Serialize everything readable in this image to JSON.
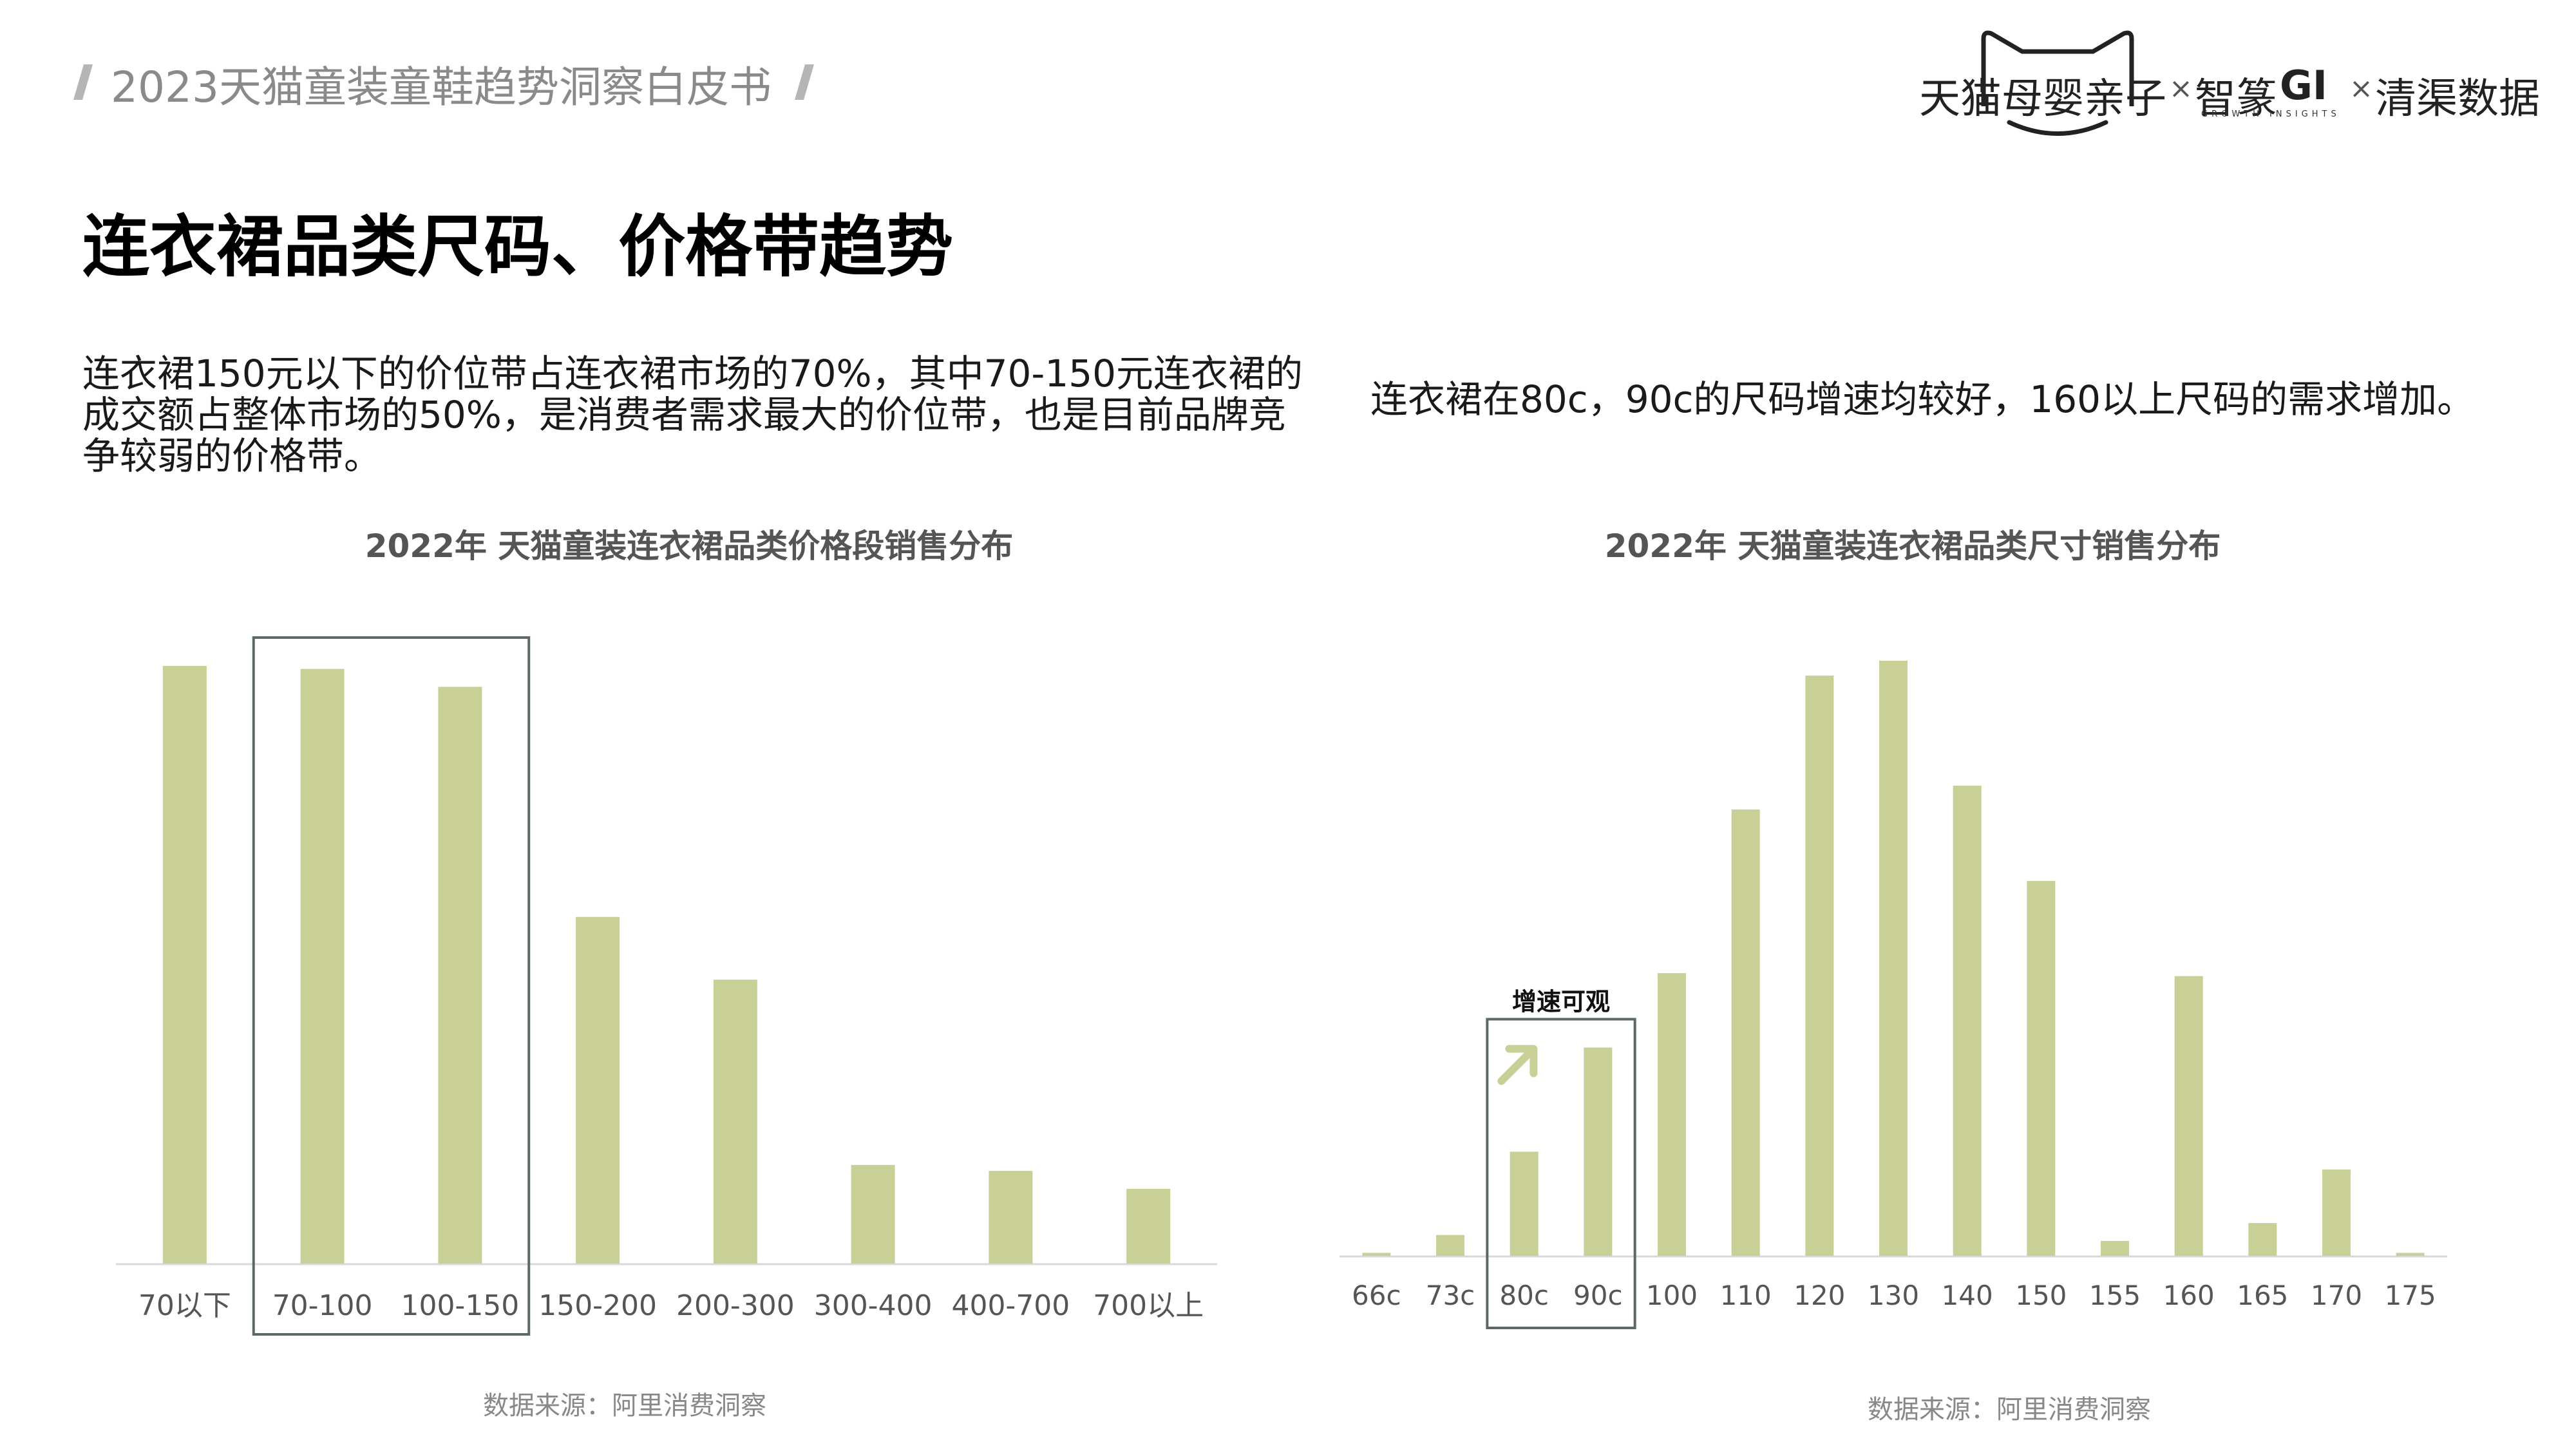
{
  "header": {
    "report_title": "2023天猫童装童鞋趋势洞察白皮书"
  },
  "brand": {
    "tmall": "天猫母婴亲子",
    "times1": "×",
    "zhizhuan": "智篆",
    "gi": "GI",
    "gi_sub": "GROWTH   INSIGHTS",
    "times2": "×",
    "qingqu": "清渠数据"
  },
  "page_title": "连衣裙品类尺码、价格带趋势",
  "desc_left": "连衣裙150元以下的价位带占连衣裙市场的70%，其中70-150元连衣裙的成交额占整体市场的50%，是消费者需求最大的价位带，也是目前品牌竞争较弱的价格带。",
  "desc_right": "连衣裙在80c，90c的尺码增速均较好，160以上尺码的需求增加。",
  "source_left": "数据来源：阿里消费洞察",
  "source_right": "数据来源：阿里消费洞察",
  "colors": {
    "bar": "#c9d096",
    "highlight_box": "#5b6b63",
    "arrow": "#c9d096",
    "axis": "#d9d9d9",
    "tick": "#555555"
  },
  "chart_data": [
    {
      "type": "bar",
      "title": "2022年 天猫童装连衣裙品类价格段销售分布",
      "categories": [
        "70以下",
        "70-100",
        "100-150",
        "150-200",
        "200-300",
        "300-400",
        "400-700",
        "700以上"
      ],
      "values": [
        100,
        99.5,
        96.5,
        58,
        47.5,
        16.5,
        15.5,
        12.5
      ],
      "ylim": [
        0,
        100
      ],
      "y_axis_shown": false,
      "highlight": {
        "categories": [
          "70-100",
          "100-150"
        ]
      }
    },
    {
      "type": "bar",
      "title": "2022年 天猫童装连衣裙品类尺寸销售分布",
      "categories": [
        "66c",
        "73c",
        "80c",
        "90c",
        "100",
        "110",
        "120",
        "130",
        "140",
        "150",
        "155",
        "160",
        "165",
        "170",
        "175"
      ],
      "values": [
        0.5,
        3.5,
        17.5,
        35,
        47.5,
        75,
        97.5,
        100,
        79,
        63,
        2.5,
        47,
        5.5,
        14.5,
        0.5
      ],
      "ylim": [
        0,
        100
      ],
      "y_axis_shown": false,
      "highlight": {
        "categories": [
          "80c",
          "90c"
        ],
        "label": "增速可观"
      }
    }
  ]
}
